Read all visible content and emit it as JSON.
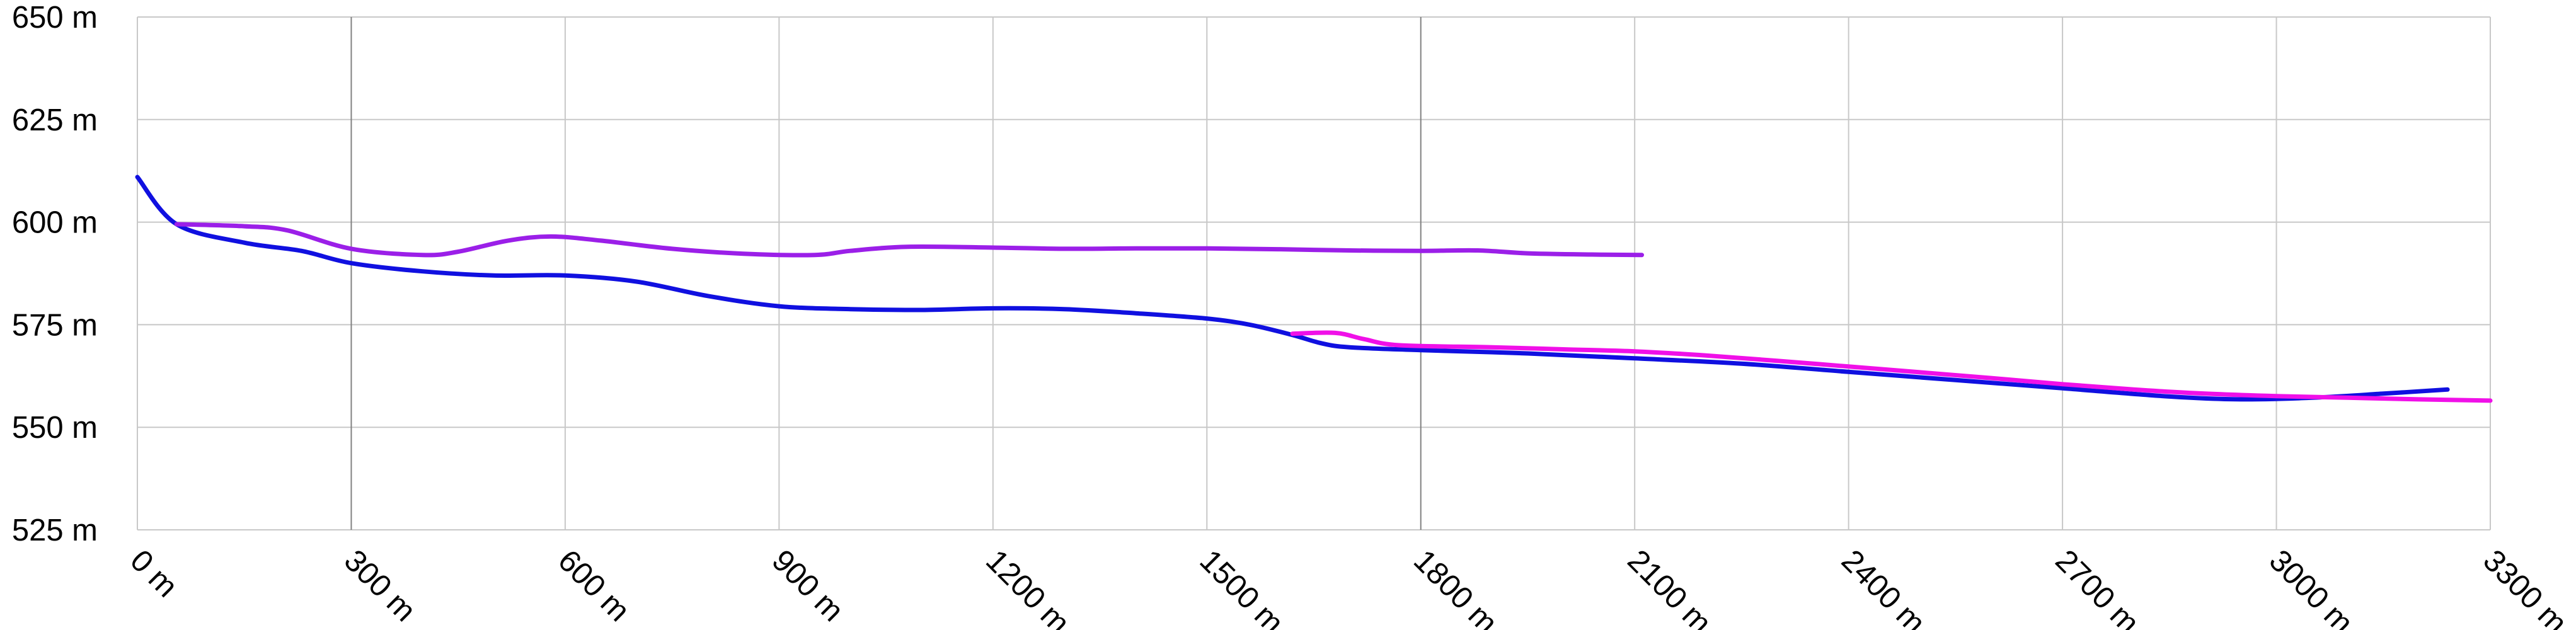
{
  "chart_data": {
    "type": "line",
    "title": "",
    "xlabel": "",
    "ylabel": "",
    "x_unit": "m",
    "y_unit": "m",
    "xlim": [
      0,
      3300
    ],
    "ylim": [
      525,
      650
    ],
    "x_ticks": [
      0,
      300,
      600,
      900,
      1200,
      1500,
      1800,
      2100,
      2400,
      2700,
      3000,
      3300
    ],
    "x_tick_labels": [
      "0 m",
      "300 m",
      "600 m",
      "900 m",
      "1200 m",
      "1500 m",
      "1800 m",
      "2100 m",
      "2400 m",
      "2700 m",
      "3000 m",
      "3300 m"
    ],
    "y_ticks": [
      525,
      550,
      575,
      600,
      625,
      650
    ],
    "y_tick_labels": [
      "525 m",
      "550 m",
      "575 m",
      "600 m",
      "625 m",
      "650 m"
    ],
    "major_x_gridlines": [
      300,
      1800
    ],
    "grid": true,
    "legend": "none",
    "series": [
      {
        "color": "#1010e0",
        "points": [
          [
            0,
            611
          ],
          [
            55,
            599.5
          ],
          [
            150,
            595
          ],
          [
            230,
            593
          ],
          [
            300,
            590
          ],
          [
            400,
            588
          ],
          [
            500,
            587
          ],
          [
            600,
            587
          ],
          [
            700,
            585.5
          ],
          [
            800,
            582
          ],
          [
            900,
            579.5
          ],
          [
            1000,
            578.8
          ],
          [
            1100,
            578.6
          ],
          [
            1200,
            579
          ],
          [
            1300,
            578.8
          ],
          [
            1400,
            577.8
          ],
          [
            1500,
            576.5
          ],
          [
            1560,
            575
          ],
          [
            1620,
            572.5
          ],
          [
            1660,
            570.5
          ],
          [
            1700,
            569.5
          ],
          [
            1800,
            568.8
          ],
          [
            1950,
            568
          ],
          [
            2100,
            566.8
          ],
          [
            2250,
            565.5
          ],
          [
            2400,
            563.5
          ],
          [
            2550,
            561.5
          ],
          [
            2700,
            559.5
          ],
          [
            2850,
            557.5
          ],
          [
            2950,
            556.8
          ],
          [
            3050,
            557.2
          ],
          [
            3150,
            558.2
          ],
          [
            3240,
            559.2
          ]
        ]
      },
      {
        "color": "#9b1fe8",
        "points": [
          [
            55,
            599.5
          ],
          [
            150,
            599
          ],
          [
            210,
            598
          ],
          [
            300,
            593.5
          ],
          [
            400,
            592
          ],
          [
            450,
            592.8
          ],
          [
            520,
            595.5
          ],
          [
            580,
            596.5
          ],
          [
            650,
            595.5
          ],
          [
            750,
            593.5
          ],
          [
            850,
            592.3
          ],
          [
            950,
            592
          ],
          [
            1000,
            593
          ],
          [
            1080,
            594
          ],
          [
            1200,
            593.8
          ],
          [
            1300,
            593.5
          ],
          [
            1400,
            593.6
          ],
          [
            1500,
            593.6
          ],
          [
            1600,
            593.4
          ],
          [
            1700,
            593.1
          ],
          [
            1800,
            593
          ],
          [
            1880,
            593.1
          ],
          [
            1950,
            592.4
          ],
          [
            2040,
            592.1
          ],
          [
            2110,
            592
          ]
        ]
      },
      {
        "color": "#f010e8",
        "points": [
          [
            1620,
            572.8
          ],
          [
            1680,
            573
          ],
          [
            1720,
            571.5
          ],
          [
            1770,
            570
          ],
          [
            1900,
            569.5
          ],
          [
            2000,
            569
          ],
          [
            2100,
            568.5
          ],
          [
            2200,
            567.5
          ],
          [
            2300,
            566.2
          ],
          [
            2400,
            564.8
          ],
          [
            2500,
            563.4
          ],
          [
            2600,
            562
          ],
          [
            2700,
            560.5
          ],
          [
            2800,
            559.2
          ],
          [
            2900,
            558.2
          ],
          [
            3000,
            557.6
          ],
          [
            3100,
            557.2
          ],
          [
            3200,
            556.8
          ],
          [
            3300,
            556.5
          ]
        ]
      }
    ]
  }
}
